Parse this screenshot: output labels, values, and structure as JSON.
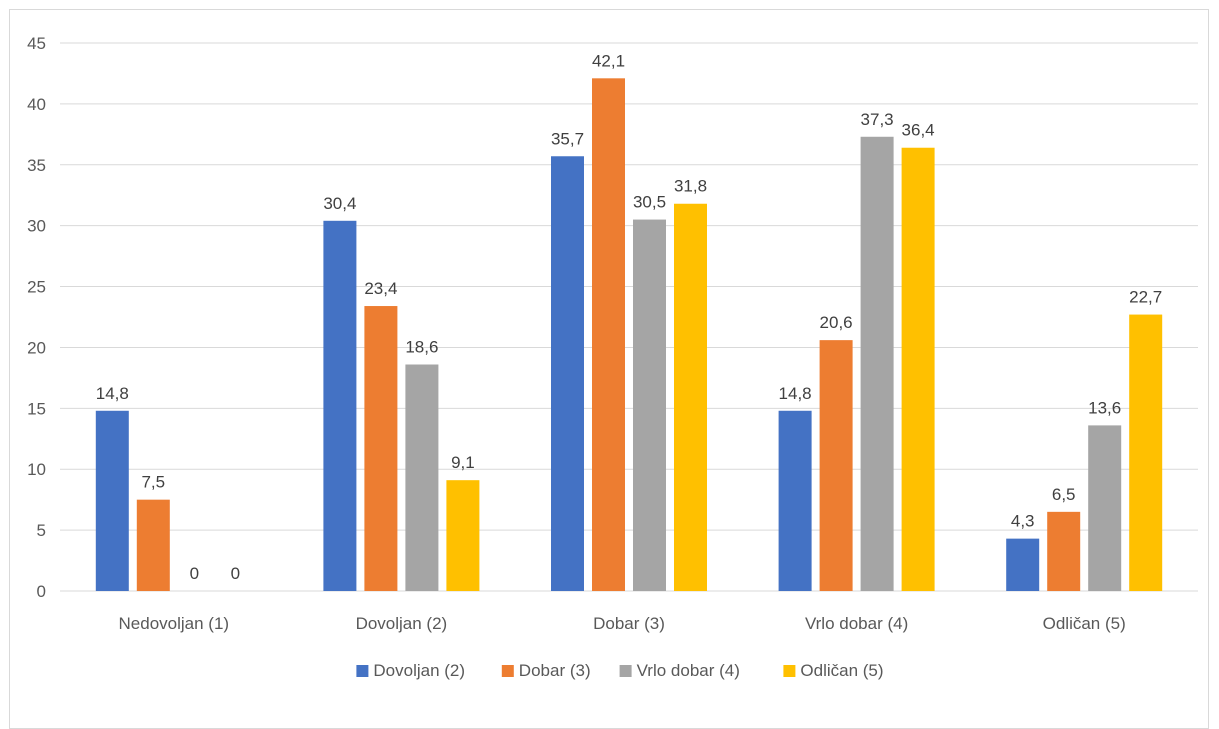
{
  "chart_data": {
    "type": "bar",
    "categories": [
      "Nedovoljan (1)",
      "Dovoljan (2)",
      "Dobar (3)",
      "Vrlo dobar (4)",
      "Odličan (5)"
    ],
    "series": [
      {
        "name": "Dovoljan (2)",
        "color": "#4472c4",
        "values": [
          14.8,
          30.4,
          35.7,
          14.8,
          4.3
        ],
        "labels": [
          "14,8",
          "30,4",
          "35,7",
          "14,8",
          "4,3"
        ]
      },
      {
        "name": "Dobar (3)",
        "color": "#ed7d31",
        "values": [
          7.5,
          23.4,
          42.1,
          20.6,
          6.5
        ],
        "labels": [
          "7,5",
          "23,4",
          "42,1",
          "20,6",
          "6,5"
        ]
      },
      {
        "name": "Vrlo dobar (4)",
        "color": "#a5a5a5",
        "values": [
          0,
          18.6,
          30.5,
          37.3,
          13.6
        ],
        "labels": [
          "0",
          "18,6",
          "30,5",
          "37,3",
          "13,6"
        ]
      },
      {
        "name": "Odličan (5)",
        "color": "#ffc000",
        "values": [
          0,
          9.1,
          31.8,
          36.4,
          22.7
        ],
        "labels": [
          "0",
          "9,1",
          "31,8",
          "36,4",
          "22,7"
        ]
      }
    ],
    "yticks": [
      "0",
      "5",
      "10",
      "15",
      "20",
      "25",
      "30",
      "35",
      "40",
      "45"
    ],
    "ylim": [
      0,
      45
    ],
    "grid": true,
    "legend": "bottom"
  }
}
